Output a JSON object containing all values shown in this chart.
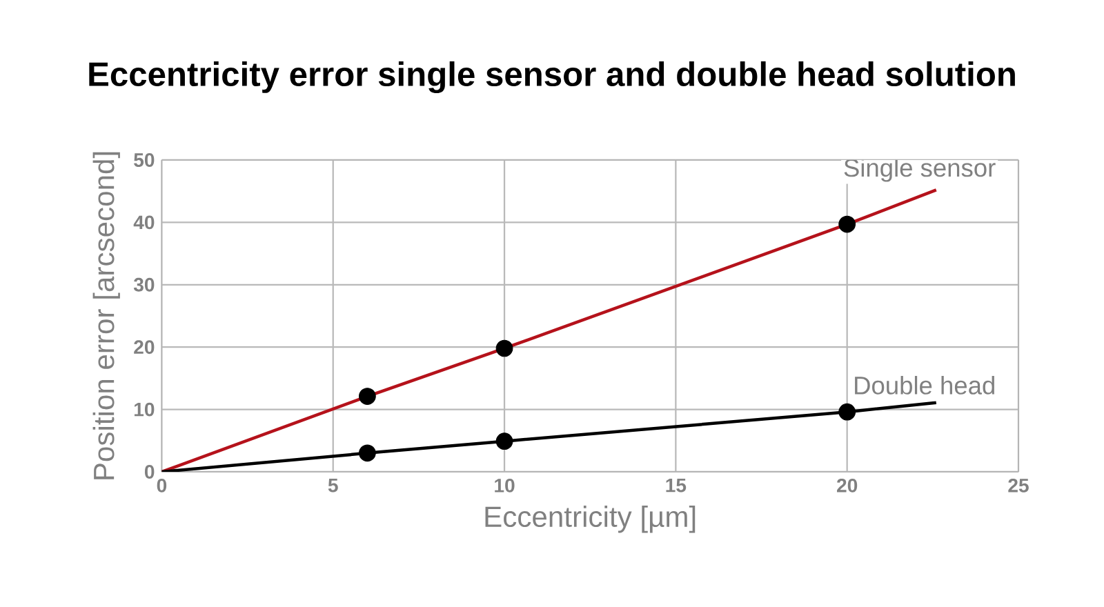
{
  "chart_data": {
    "type": "line",
    "title": "Eccentricity error single sensor and double head solution",
    "xlabel": "Eccentricity [µm]",
    "ylabel": "Position error [arcsecond]",
    "series": [
      {
        "name": "Single sensor",
        "color": "#b5121b",
        "x": [
          0,
          6,
          10,
          20,
          22.6
        ],
        "values": [
          0,
          12.1,
          19.8,
          39.7,
          45.2
        ],
        "marker": "none"
      },
      {
        "name": "Double head",
        "color": "#000000",
        "x": [
          0,
          6,
          10,
          20,
          22.6
        ],
        "values": [
          0,
          3.0,
          4.9,
          9.6,
          11.1
        ],
        "marker": "none"
      },
      {
        "type": "scatter",
        "color": "#000000",
        "x": [
          6,
          10,
          20
        ],
        "values": [
          12.1,
          19.8,
          39.7
        ],
        "marker": "circle"
      },
      {
        "type": "scatter",
        "color": "#000000",
        "x": [
          6,
          10,
          20
        ],
        "values": [
          3.0,
          4.9,
          9.6
        ],
        "marker": "circle"
      }
    ],
    "xlim": [
      0,
      25
    ],
    "xticks": [
      0,
      5,
      10,
      15,
      20,
      25
    ],
    "ylim": [
      0,
      50
    ],
    "yticks": [
      0,
      10,
      20,
      30,
      40,
      50
    ],
    "grid": true
  }
}
